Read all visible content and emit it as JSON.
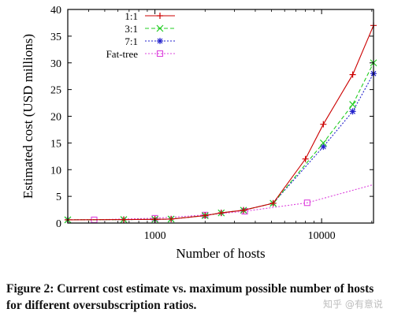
{
  "chart_data": {
    "type": "line",
    "title": "",
    "xlabel": "Number of hosts",
    "ylabel": "Estimated cost (USD millions)",
    "xscale": "log",
    "xlim": [
      300,
      20480
    ],
    "ylim": [
      0,
      40
    ],
    "xticks": [
      1000,
      10000
    ],
    "xtick_labels": [
      "1000",
      "10000"
    ],
    "yticks": [
      0,
      5,
      10,
      15,
      20,
      25,
      30,
      35,
      40
    ],
    "ytick_labels": [
      "0",
      "5",
      "10",
      "15",
      "20",
      "25",
      "30",
      "35",
      "40"
    ],
    "grid": false,
    "legend_position": "top-left",
    "series": [
      {
        "name": "1:1",
        "color": "#cc0000",
        "dash": "solid",
        "marker": "plus",
        "x": [
          300,
          650,
          1000,
          1250,
          2000,
          2500,
          3400,
          5120,
          8000,
          10240,
          15360,
          20480
        ],
        "y": [
          0.6,
          0.65,
          0.7,
          0.75,
          1.4,
          1.9,
          2.4,
          3.7,
          12.0,
          18.5,
          27.8,
          37.0
        ]
      },
      {
        "name": "3:1",
        "color": "#22cc22",
        "dash": "dashed",
        "marker": "x",
        "x": [
          300,
          650,
          1000,
          1250,
          2000,
          2500,
          3400,
          5120,
          10240,
          15360,
          20480
        ],
        "y": [
          0.6,
          0.65,
          0.7,
          0.75,
          1.4,
          1.9,
          2.4,
          3.7,
          15.0,
          22.2,
          30.0
        ]
      },
      {
        "name": "7:1",
        "color": "#2222cc",
        "dash": "dotted",
        "marker": "star",
        "x": [
          300,
          650,
          1000,
          1250,
          2000,
          2500,
          3400,
          5120,
          10240,
          15360,
          20480
        ],
        "y": [
          0.6,
          0.65,
          0.7,
          0.75,
          1.4,
          1.9,
          2.4,
          3.7,
          14.3,
          20.9,
          28.0
        ]
      },
      {
        "name": "Fat-tree",
        "color": "#dd44dd",
        "dash": "dotted",
        "marker": "square",
        "x": [
          300,
          432,
          1000,
          2000,
          3456,
          8192,
          20480
        ],
        "y": [
          0.6,
          0.6,
          0.9,
          1.5,
          2.2,
          3.8,
          7.2
        ],
        "marker_x": [
          432,
          1000,
          2000,
          3456,
          8192
        ]
      }
    ]
  },
  "caption": "Figure 2: Current cost estimate vs. maximum possible number of hosts for different oversubscription ratios.",
  "watermark": "知乎 @有意说"
}
